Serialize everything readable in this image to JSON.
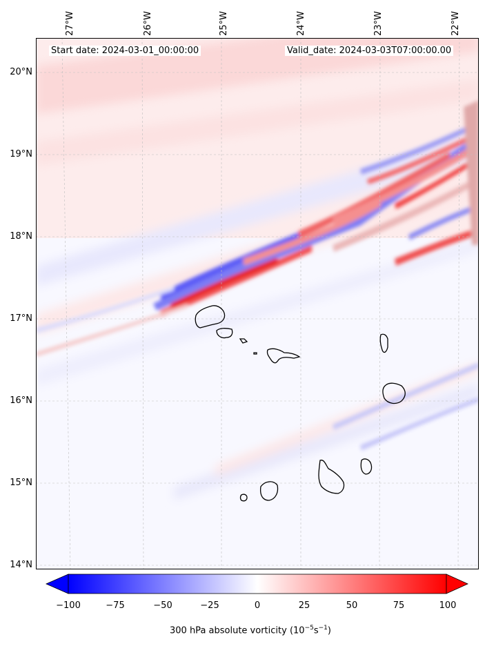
{
  "map": {
    "start_date_text": "Start date: 2024-03-01_00:00:00",
    "valid_date_text": "Valid_date: 2024-03-03T07:00:00.00",
    "field": "300 hPa absolute vorticity",
    "lon_labels": [
      "27°W",
      "26°W",
      "25°W",
      "24°W",
      "23°W",
      "22°W"
    ],
    "lat_labels": [
      "20°N",
      "19°N",
      "18°N",
      "17°N",
      "16°N",
      "15°N",
      "14°N"
    ],
    "extent": {
      "lon_min": -27.35,
      "lon_max": -21.85,
      "lat_min": 13.95,
      "lat_max": 20.4
    },
    "gridlines": true,
    "features": [
      "Cabo Verde islands coastline"
    ]
  },
  "colorbar": {
    "label_main": "300 hPa absolute vorticity (10",
    "label_exp1": "−5",
    "label_mid": "s",
    "label_exp2": "−1",
    "label_end": ")",
    "ticks": [
      "−100",
      "−75",
      "−50",
      "−25",
      "0",
      "25",
      "50",
      "75",
      "100"
    ],
    "range": [
      -100,
      100
    ],
    "colormap": "bwr",
    "extend": "both",
    "colors": {
      "min": "#0000ff",
      "mid": "#ffffff",
      "max": "#ff0000"
    }
  }
}
